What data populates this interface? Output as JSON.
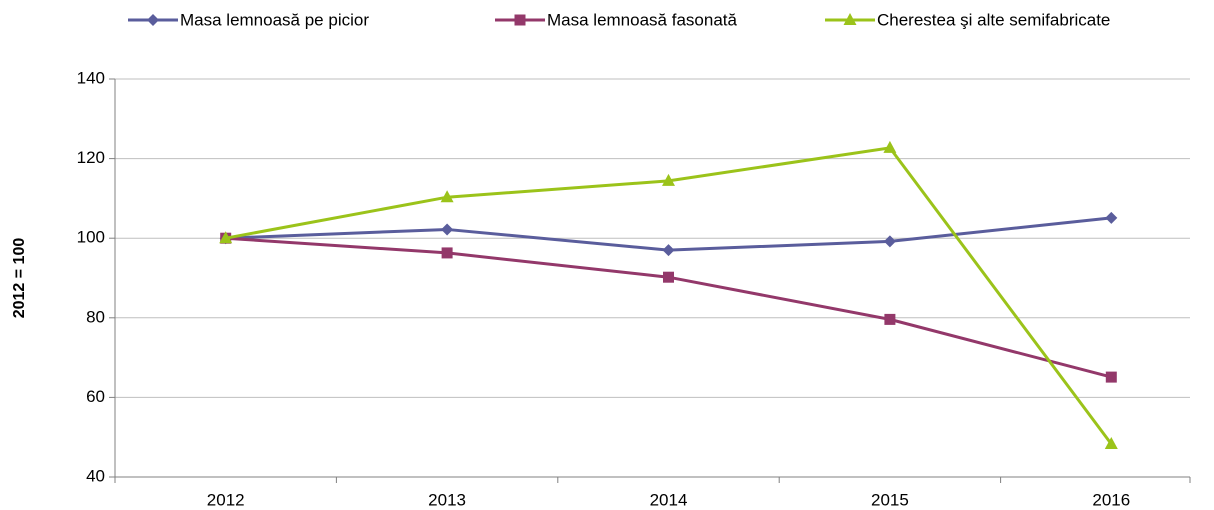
{
  "chart_data": {
    "type": "line",
    "y_label": "2012 = 100",
    "categories": [
      "2012",
      "2013",
      "2014",
      "2015",
      "2016"
    ],
    "series": [
      {
        "name": "Masa lemnoasă pe picior",
        "color": "#5a5d9c",
        "marker": "diamond",
        "values": [
          100,
          102.2,
          97,
          99.2,
          105.1
        ]
      },
      {
        "name": "Masa lemnoasă fasonată",
        "color": "#93386a",
        "marker": "square",
        "values": [
          100,
          96.3,
          90.2,
          79.6,
          65.1
        ]
      },
      {
        "name": "Cherestea şi alte semifabricate",
        "color": "#9bc31a",
        "marker": "triangle",
        "values": [
          100,
          110.3,
          114.4,
          122.7,
          48.3
        ]
      }
    ],
    "ylim": [
      40,
      140
    ],
    "yticks": [
      40,
      60,
      80,
      100,
      120,
      140
    ],
    "grid": true,
    "legend": "top"
  }
}
